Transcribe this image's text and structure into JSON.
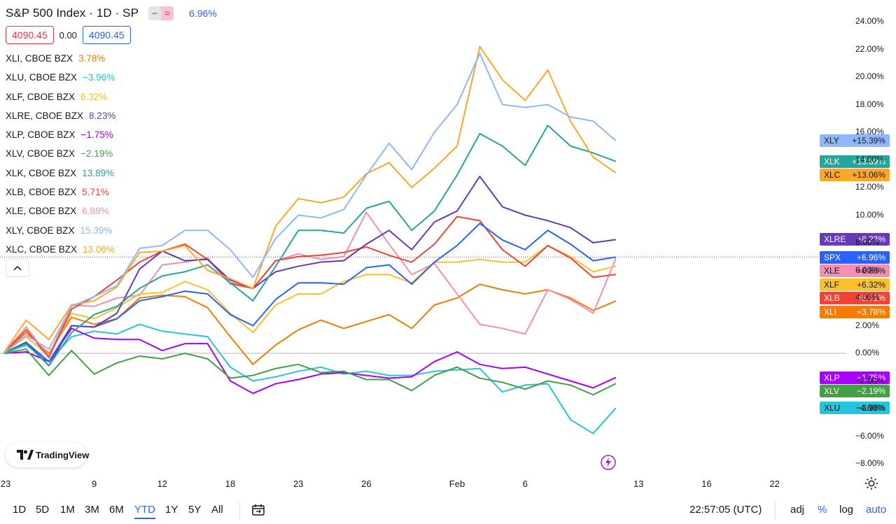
{
  "header": {
    "title": "S&P 500 Index · 1D · SP",
    "change": "6.96%",
    "toggle_icons": [
      "minus-icon",
      "approx-icon"
    ]
  },
  "ohlc": {
    "left": "4090.45",
    "mid": "0.00",
    "right": "4090.45"
  },
  "legend": [
    {
      "name": "XLI, CBOE BZX",
      "value": "3.78%",
      "color": "#f57c00"
    },
    {
      "name": "XLU, CBOE BZX",
      "value": "−3.96%",
      "color": "#26c6da"
    },
    {
      "name": "XLF, CBOE BZX",
      "value": "6.32%",
      "color": "#fbc02d"
    },
    {
      "name": "XLRE, CBOE BZX",
      "value": "8.23%",
      "color": "#673ab7"
    },
    {
      "name": "XLP, CBOE BZX",
      "value": "−1.75%",
      "color": "#aa00ff"
    },
    {
      "name": "XLV, CBOE BZX",
      "value": "−2.19%",
      "color": "#43a047"
    },
    {
      "name": "XLK, CBOE BZX",
      "value": "13.89%",
      "color": "#26a69a"
    },
    {
      "name": "XLB, CBOE BZX",
      "value": "5.71%",
      "color": "#f44336"
    },
    {
      "name": "XLE, CBOE BZX",
      "value": "6.88%",
      "color": "#f48fb1"
    },
    {
      "name": "XLY, CBOE BZX",
      "value": "15.39%",
      "color": "#90b7f9"
    },
    {
      "name": "XLC, CBOE BZX",
      "value": "13.06%",
      "color": "#ffa726"
    }
  ],
  "badges": [
    {
      "sym": "XLY",
      "val": "+15.39%",
      "bg": "#90b7f9",
      "fg": "#131722",
      "y": 15.39
    },
    {
      "sym": "XLK",
      "val": "+13.89%",
      "bg": "#26a69a",
      "fg": "#ffffff",
      "y": 13.89
    },
    {
      "sym": "XLC",
      "val": "+13.06%",
      "bg": "#ffa726",
      "fg": "#131722",
      "y": 13.06
    },
    {
      "sym": "XLRE",
      "val": "+8.23%",
      "bg": "#673ab7",
      "fg": "#ffffff",
      "y": 8.23
    },
    {
      "sym": "SPX",
      "val": "+6.96%",
      "bg": "#2962ff",
      "fg": "#ffffff",
      "y": 6.96
    },
    {
      "sym": "XLE",
      "val": "+6.88%",
      "bg": "#f48fb1",
      "fg": "#131722",
      "y": 6.88
    },
    {
      "sym": "XLF",
      "val": "+6.32%",
      "bg": "#fbc02d",
      "fg": "#131722",
      "y": 6.32
    },
    {
      "sym": "XLB",
      "val": "+5.71%",
      "bg": "#f44336",
      "fg": "#ffffff",
      "y": 5.71
    },
    {
      "sym": "XLI",
      "val": "+3.78%",
      "bg": "#f57c00",
      "fg": "#ffffff",
      "y": 3.78
    },
    {
      "sym": "XLP",
      "val": "−1.75%",
      "bg": "#aa00ff",
      "fg": "#ffffff",
      "y": -1.75
    },
    {
      "sym": "XLV",
      "val": "−2.19%",
      "bg": "#43a047",
      "fg": "#ffffff",
      "y": -2.19
    },
    {
      "sym": "XLU",
      "val": "−3.96%",
      "bg": "#26c6da",
      "fg": "#131722",
      "y": -3.96
    }
  ],
  "chart_data": {
    "type": "line",
    "percent_scale": true,
    "ylim": [
      -8,
      24
    ],
    "y_ticks": [
      "24.00%",
      "22.00%",
      "20.00%",
      "18.00%",
      "16.00%",
      "14.00%",
      "12.00%",
      "10.00%",
      "8.00%",
      "6.00%",
      "4.00%",
      "2.00%",
      "0.00%",
      "−2.00%",
      "−4.00%",
      "−6.00%",
      "−8.00%"
    ],
    "x_ticks": [
      {
        "label": "23",
        "bar": 0
      },
      {
        "label": "9",
        "bar": 4
      },
      {
        "label": "12",
        "bar": 7
      },
      {
        "label": "18",
        "bar": 10
      },
      {
        "label": "23",
        "bar": 13
      },
      {
        "label": "26",
        "bar": 16
      },
      {
        "label": "Feb",
        "bar": 20
      },
      {
        "label": "6",
        "bar": 23
      },
      {
        "label": "13",
        "bar": 28
      },
      {
        "label": "16",
        "bar": 31
      },
      {
        "label": "22",
        "bar": 34
      }
    ],
    "bars_count": 27,
    "series": [
      {
        "name": "XLU",
        "color": "#26c6da",
        "values": [
          0,
          0.6,
          -0.6,
          1.2,
          1.6,
          1.4,
          2.1,
          1.6,
          1.4,
          1.2,
          -1.0,
          -2.0,
          -1.7,
          -1.3,
          -1.0,
          -1.5,
          -1.3,
          -1.6,
          -1.6,
          -1.3,
          -1.2,
          -1.1,
          -2.8,
          -2.3,
          -2.2,
          -4.8,
          -5.8,
          -3.96
        ]
      },
      {
        "name": "XLP",
        "color": "#aa00ff",
        "values": [
          0,
          0.1,
          -0.6,
          1.8,
          1.1,
          1.0,
          1.0,
          0.2,
          0.7,
          0.7,
          -2.0,
          -2.9,
          -2.2,
          -1.9,
          -1.5,
          -1.4,
          -1.6,
          -1.8,
          -1.7,
          -0.6,
          0.1,
          -0.8,
          -1.1,
          -1.0,
          -1.5,
          -2.0,
          -2.5,
          -1.75
        ]
      },
      {
        "name": "XLV",
        "color": "#43a047",
        "values": [
          0,
          0.3,
          -1.6,
          0.2,
          -1.5,
          -0.7,
          -0.2,
          -0.4,
          0.0,
          -0.4,
          -1.8,
          -1.6,
          -1.1,
          -0.8,
          -1.4,
          -1.3,
          -1.9,
          -1.9,
          -2.7,
          -1.6,
          -1.0,
          -1.8,
          -2.1,
          -2.6,
          -2.0,
          -2.3,
          -3.0,
          -2.19
        ]
      },
      {
        "name": "XLI",
        "color": "#f57c00",
        "values": [
          0,
          1.5,
          0.0,
          2.6,
          2.1,
          2.5,
          4.0,
          4.2,
          4.1,
          3.3,
          1.2,
          -0.8,
          0.6,
          1.7,
          2.4,
          1.8,
          2.3,
          2.8,
          1.8,
          3.5,
          4.0,
          5.0,
          4.6,
          4.3,
          4.6,
          4.0,
          3.1,
          3.78
        ]
      },
      {
        "name": "XLE",
        "color": "#f48fb1",
        "values": [
          0,
          1.9,
          -0.2,
          3.5,
          3.4,
          4.0,
          4.2,
          6.4,
          6.6,
          6.9,
          5.0,
          4.7,
          6.7,
          7.2,
          6.8,
          7.0,
          10.2,
          7.9,
          5.7,
          6.5,
          4.3,
          2.1,
          1.8,
          1.4,
          4.6,
          3.9,
          2.9,
          6.88
        ]
      },
      {
        "name": "XLF",
        "color": "#fbc02d",
        "values": [
          0,
          1.2,
          -0.2,
          2.9,
          2.5,
          3.3,
          4.3,
          4.4,
          5.2,
          4.6,
          2.9,
          1.5,
          3.5,
          4.3,
          4.3,
          5.2,
          5.7,
          5.7,
          5.1,
          6.6,
          6.6,
          6.8,
          6.6,
          6.6,
          7.8,
          7.0,
          5.9,
          6.32
        ]
      },
      {
        "name": "XLB",
        "color": "#f44336",
        "values": [
          0,
          1.7,
          -0.3,
          3.2,
          4.1,
          5.3,
          6.6,
          7.4,
          7.9,
          6.8,
          5.1,
          4.7,
          6.7,
          7.0,
          7.1,
          7.3,
          7.7,
          7.1,
          6.6,
          7.9,
          9.9,
          9.6,
          7.5,
          6.3,
          7.8,
          6.9,
          5.5,
          5.71
        ]
      },
      {
        "name": "SPX",
        "color": "#2962ff",
        "values": [
          0,
          0.8,
          -0.6,
          2.0,
          1.9,
          2.5,
          3.8,
          4.1,
          4.5,
          4.3,
          2.8,
          2.0,
          3.9,
          5.1,
          5.1,
          5.0,
          6.2,
          6.4,
          5.0,
          6.6,
          7.8,
          9.4,
          8.2,
          7.5,
          8.9,
          7.9,
          6.7,
          6.96
        ]
      },
      {
        "name": "XLRE",
        "color": "#673ab7",
        "values": [
          0,
          0.8,
          -0.9,
          2.0,
          1.9,
          2.9,
          6.1,
          7.4,
          6.7,
          6.8,
          5.3,
          4.7,
          5.9,
          6.3,
          6.6,
          6.7,
          7.9,
          8.9,
          7.5,
          9.5,
          10.3,
          12.8,
          10.6,
          10.0,
          9.6,
          9.1,
          8.0,
          8.23
        ]
      },
      {
        "name": "XLK",
        "color": "#26a69a",
        "values": [
          0,
          0.7,
          -0.9,
          1.5,
          2.8,
          3.4,
          4.7,
          5.6,
          5.9,
          6.4,
          5.1,
          3.8,
          6.3,
          8.9,
          8.9,
          8.7,
          10.5,
          11.0,
          8.9,
          10.3,
          12.9,
          15.9,
          15.0,
          13.6,
          16.5,
          15.0,
          14.5,
          13.89
        ]
      },
      {
        "name": "XLC",
        "color": "#ffa726",
        "values": [
          0,
          2.4,
          1.0,
          3.5,
          3.8,
          4.8,
          7.3,
          7.4,
          7.8,
          6.0,
          5.4,
          4.7,
          9.2,
          11.2,
          10.9,
          11.3,
          13.0,
          13.8,
          12.0,
          13.4,
          15.0,
          22.2,
          19.8,
          18.3,
          20.5,
          16.8,
          14.2,
          13.06
        ]
      },
      {
        "name": "XLY",
        "color": "#90b7f9",
        "values": [
          0,
          1.3,
          0.3,
          3.4,
          4.1,
          4.9,
          7.6,
          7.8,
          8.9,
          8.9,
          7.5,
          5.5,
          8.3,
          10.0,
          9.8,
          10.4,
          12.9,
          15.2,
          13.3,
          16.0,
          18.0,
          21.7,
          18.0,
          17.8,
          18.0,
          17.1,
          16.8,
          15.39
        ]
      }
    ]
  },
  "timeframes": [
    "1D",
    "5D",
    "1M",
    "3M",
    "6M",
    "YTD",
    "1Y",
    "5Y",
    "All"
  ],
  "active_timeframe": "YTD",
  "toolbar_right": {
    "time": "22:57:05 (UTC)",
    "adj": "adj",
    "percent": "%",
    "log": "log",
    "auto": "auto"
  },
  "logo": {
    "text": "TradingView"
  },
  "icons": {
    "collapse": "chevron-up-icon",
    "gear": "gear-icon",
    "calendar": "calendar-range-icon",
    "bolt": "lightning-icon"
  }
}
